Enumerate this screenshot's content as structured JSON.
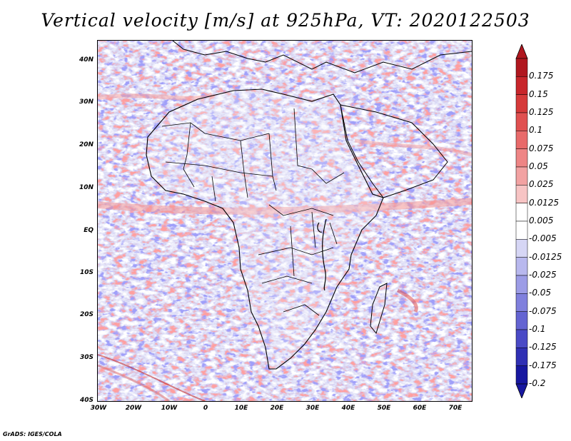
{
  "title": "Vertical velocity [m/s] at 925hPa, VT: 2020122503",
  "credit": "GrADS: IGES/COLA",
  "lat_labels": [
    "40N",
    "30N",
    "20N",
    "10N",
    "EQ",
    "10S",
    "20S",
    "30S",
    "40S"
  ],
  "lon_labels": [
    "30W",
    "20W",
    "10W",
    "0",
    "10E",
    "20E",
    "30E",
    "40E",
    "50E",
    "60E",
    "70E"
  ],
  "colorbar": {
    "labels": [
      "0.175",
      "0.15",
      "0.125",
      "0.1",
      "0.075",
      "0.05",
      "0.025",
      "0.0125",
      "0.005",
      "-0.005",
      "-0.0125",
      "-0.025",
      "-0.05",
      "-0.075",
      "-0.1",
      "-0.125",
      "-0.175",
      "-0.2"
    ],
    "colors": [
      "#b0171f",
      "#c8262b",
      "#d63a3a",
      "#e05050",
      "#e86a6a",
      "#ee8585",
      "#f2a2a2",
      "#f7c4c4",
      "#ffffff",
      "#ffffff",
      "#d6d6f5",
      "#b8b8ee",
      "#9c9ce6",
      "#8080dd",
      "#6464d2",
      "#4a4ac6",
      "#3030b4",
      "#1818a0"
    ]
  }
}
